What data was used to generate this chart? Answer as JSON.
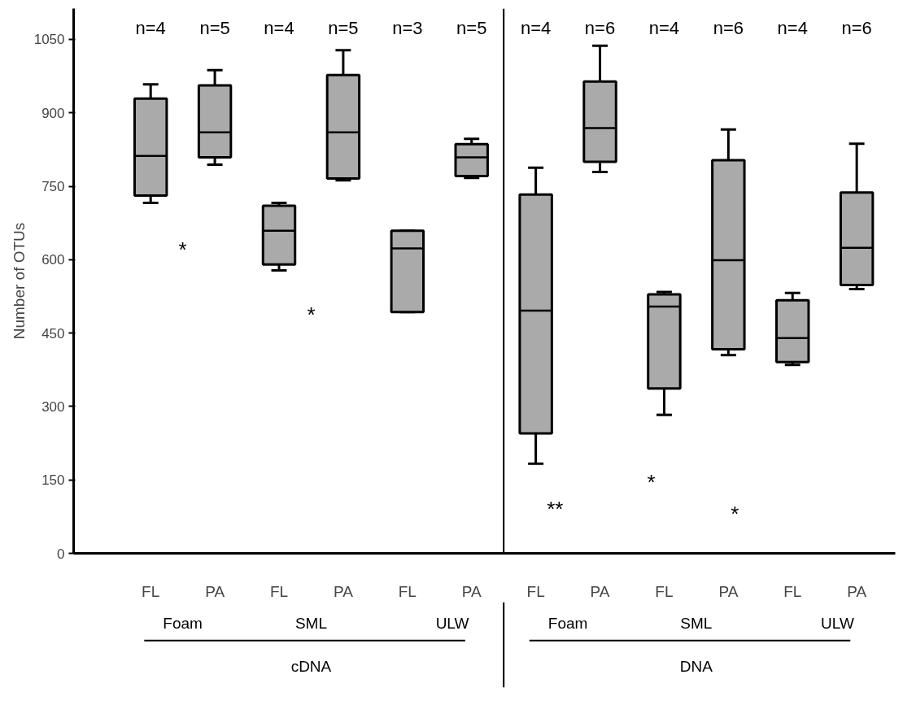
{
  "chart_data": {
    "type": "box",
    "ylabel": "Number of OTUs",
    "categories": [
      "FL",
      "PA",
      "FL",
      "PA",
      "FL",
      "PA",
      "FL",
      "PA",
      "FL",
      "PA",
      "FL",
      "PA"
    ],
    "color": "#aaaaaa",
    "boxes": [
      {
        "low": 716,
        "q1": 731,
        "median": 812,
        "q3": 929,
        "high": 958
      },
      {
        "low": 794,
        "q1": 809,
        "median": 860,
        "q3": 956,
        "high": 987
      },
      {
        "low": 578,
        "q1": 590,
        "median": 659,
        "q3": 710,
        "high": 716
      },
      {
        "low": 762,
        "q1": 766,
        "median": 860,
        "q3": 977,
        "high": 1028
      },
      {
        "low": 493,
        "q1": 493,
        "median": 623,
        "q3": 659,
        "high": 659
      },
      {
        "low": 767,
        "q1": 771,
        "median": 809,
        "q3": 836,
        "high": 847
      },
      {
        "low": 183,
        "q1": 245,
        "median": 496,
        "q3": 733,
        "high": 788
      },
      {
        "low": 779,
        "q1": 800,
        "median": 869,
        "q3": 964,
        "high": 1037
      },
      {
        "low": 283,
        "q1": 337,
        "median": 504,
        "q3": 529,
        "high": 534
      },
      {
        "low": 405,
        "q1": 417,
        "median": 599,
        "q3": 803,
        "high": 866
      },
      {
        "low": 385,
        "q1": 391,
        "median": 440,
        "q3": 517,
        "high": 532
      },
      {
        "low": 540,
        "q1": 548,
        "median": 624,
        "q3": 737,
        "high": 837
      }
    ],
    "ylim": [
      0,
      1113
    ],
    "yticks": [
      0,
      150,
      300,
      450,
      600,
      750,
      900,
      1050
    ],
    "grid": false,
    "annotations": [
      "n=4",
      "n=5",
      "n=4",
      "n=5",
      "n=3",
      "n=5",
      "n=4",
      "n=6",
      "n=4",
      "n=6",
      "n=4",
      "n=6",
      "Foam",
      "SML",
      "ULW",
      "Foam",
      "SML",
      "ULW",
      "cDNA",
      "DNA",
      "*",
      "*",
      "**",
      "*",
      "*"
    ]
  }
}
